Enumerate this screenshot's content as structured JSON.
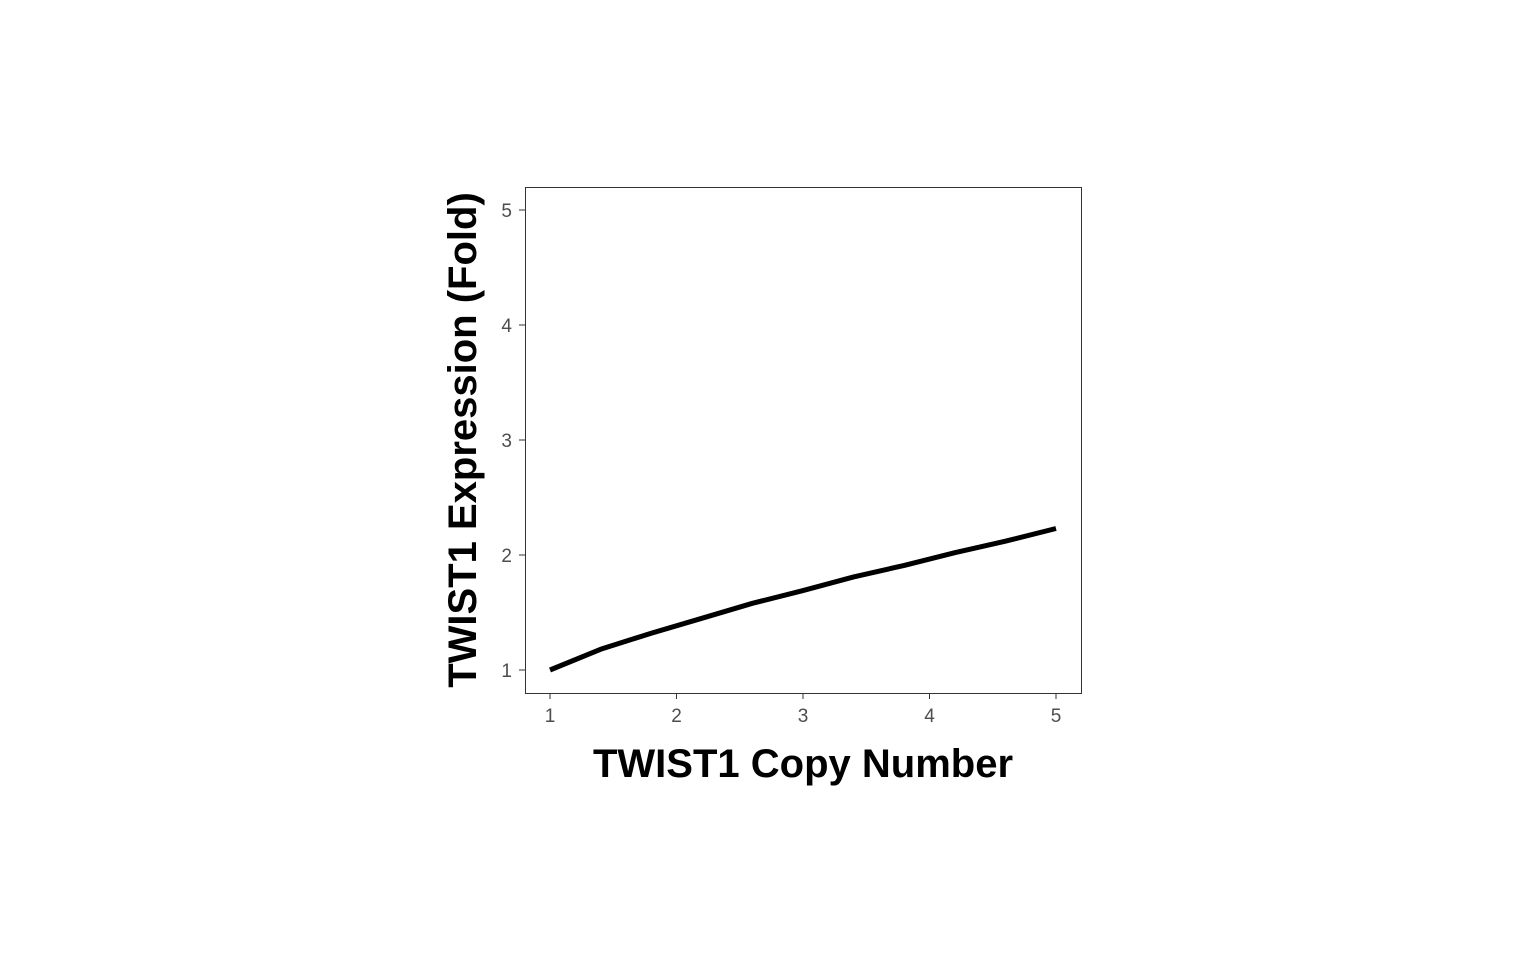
{
  "chart_data": {
    "type": "line",
    "title": "",
    "xlabel": "TWIST1 Copy Number",
    "ylabel": "TWIST1 Expression (Fold)",
    "xlim": [
      0.8,
      5.05
    ],
    "ylim": [
      0.8,
      5.2
    ],
    "x_ticks": [
      "1",
      "2",
      "3",
      "4",
      "5"
    ],
    "y_ticks": [
      "1",
      "2",
      "3",
      "4",
      "5"
    ],
    "grid": false,
    "legend": "none",
    "series": [
      {
        "x": [
          1,
          1.4,
          1.8,
          2.2,
          2.6,
          3,
          3.4,
          3.8,
          4.2,
          4.6,
          5
        ],
        "y": [
          1.0,
          1.18,
          1.32,
          1.45,
          1.58,
          1.69,
          1.81,
          1.91,
          2.02,
          2.12,
          2.23
        ]
      }
    ],
    "line_color": "#000000"
  }
}
